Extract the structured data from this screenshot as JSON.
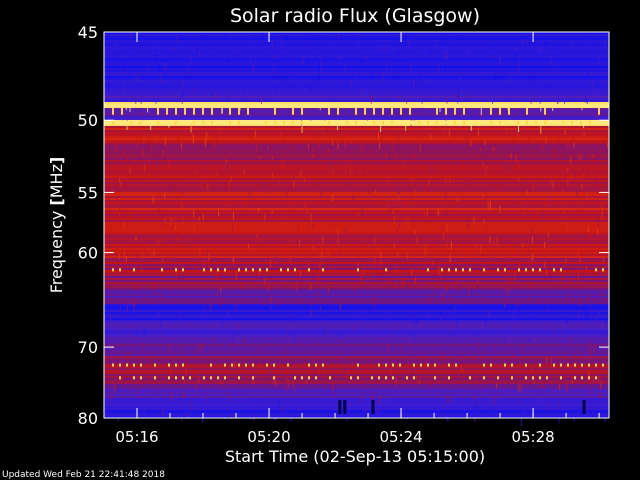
{
  "chart_data": {
    "type": "heatmap",
    "title": "Solar radio Flux (Glasgow)",
    "xlabel": "Start Time (02-Sep-13 05:15:00)",
    "ylabel_main": "Frequency ",
    "ylabel_unit": "MHz",
    "x_ticks": [
      "05:16",
      "05:20",
      "05:24",
      "05:28"
    ],
    "x_tick_minutes": [
      16,
      20,
      24,
      28
    ],
    "xlim_minutes": [
      15.0,
      30.3
    ],
    "y_ticks": [
      45,
      50,
      55,
      60,
      70,
      80
    ],
    "ylim": [
      45,
      80
    ],
    "y_scale": "reciprocal",
    "colors": {
      "background": "#000000",
      "low": "#1f1fff",
      "mid": "#c81414",
      "high": "#ffff80",
      "axes": "#ffffff"
    },
    "grid": false,
    "legend": "none",
    "bands_mhz": [
      {
        "from": 45.0,
        "to": 48.3,
        "level": 0.08
      },
      {
        "from": 48.3,
        "to": 48.9,
        "level": 0.2
      },
      {
        "from": 48.9,
        "to": 49.25,
        "level": 0.97
      },
      {
        "from": 49.25,
        "to": 50.0,
        "level": 0.25
      },
      {
        "from": 50.0,
        "to": 50.35,
        "level": 0.95
      },
      {
        "from": 50.35,
        "to": 51.5,
        "level": 0.55
      },
      {
        "from": 51.5,
        "to": 53.0,
        "level": 0.45
      },
      {
        "from": 53.0,
        "to": 55.0,
        "level": 0.5
      },
      {
        "from": 55.0,
        "to": 56.5,
        "level": 0.55
      },
      {
        "from": 56.5,
        "to": 58.5,
        "level": 0.52
      },
      {
        "from": 58.5,
        "to": 60.5,
        "level": 0.55
      },
      {
        "from": 60.5,
        "to": 62.0,
        "level": 0.48
      },
      {
        "from": 62.0,
        "to": 63.5,
        "level": 0.42
      },
      {
        "from": 63.5,
        "to": 65.0,
        "level": 0.32
      },
      {
        "from": 65.0,
        "to": 67.0,
        "level": 0.1
      },
      {
        "from": 67.0,
        "to": 69.0,
        "level": 0.18
      },
      {
        "from": 69.0,
        "to": 71.0,
        "level": 0.3
      },
      {
        "from": 71.0,
        "to": 73.0,
        "level": 0.42
      },
      {
        "from": 73.0,
        "to": 75.0,
        "level": 0.45
      },
      {
        "from": 75.0,
        "to": 77.0,
        "level": 0.28
      },
      {
        "from": 77.0,
        "to": 78.5,
        "level": 0.15
      },
      {
        "from": 78.5,
        "to": 80.0,
        "level": 0.12
      }
    ],
    "bright_rows_mhz": [
      49.1,
      50.15,
      61.6,
      72.3,
      74.0
    ],
    "dark_specks_minutes": [
      22.1,
      22.25,
      23.1,
      29.5
    ]
  },
  "footer": {
    "updated": "Updated Wed Feb 21 22:41:48 2018"
  }
}
